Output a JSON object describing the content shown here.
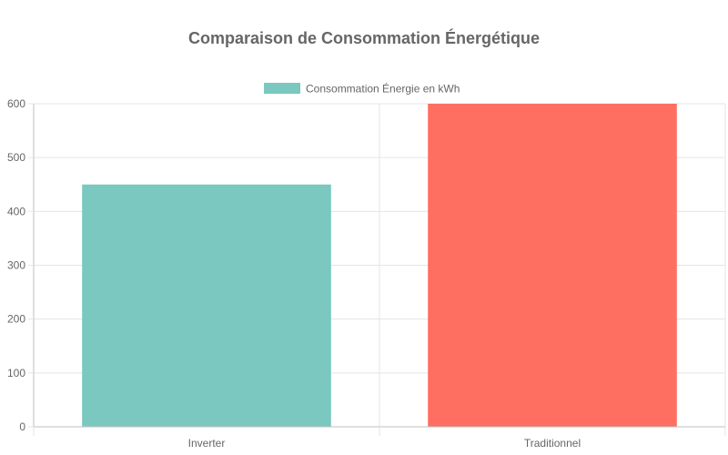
{
  "chart_data": {
    "type": "bar",
    "title": "Comparaison de Consommation Énergétique",
    "categories": [
      "Inverter",
      "Traditionnel"
    ],
    "series": [
      {
        "name": "Consommation Énergie en kWh",
        "values": [
          450,
          600
        ],
        "colors": [
          "#7ac8c0",
          "#ff6f61"
        ]
      }
    ],
    "xlabel": "",
    "ylabel": "",
    "ylim": [
      0,
      600
    ],
    "yticks": [
      0,
      100,
      200,
      300,
      400,
      500,
      600
    ],
    "grid": true,
    "legend_position": "top-center"
  }
}
